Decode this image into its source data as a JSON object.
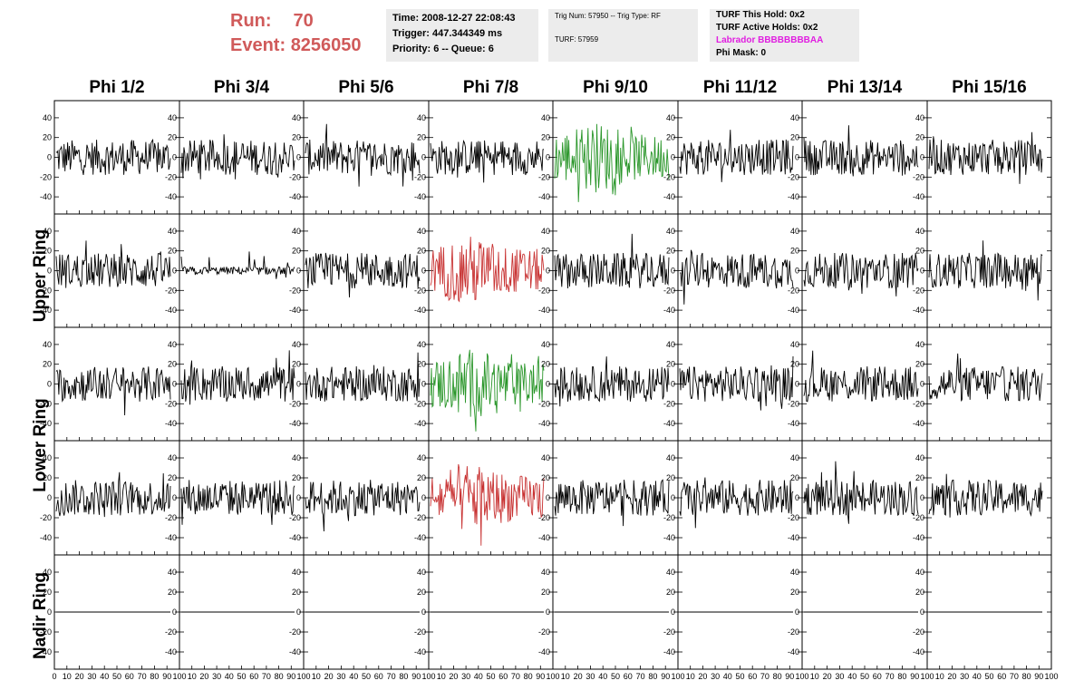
{
  "header": {
    "run_label": "Run:",
    "run_value": "70",
    "event_label": "Event:",
    "event_value": "8256050"
  },
  "info_time": {
    "time": "Time: 2008-12-27 22:08:43",
    "trigger": "Trigger: 447.344349 ms",
    "priority": "Priority: 6 -- Queue: 6"
  },
  "info_trig": {
    "trig": "Trig Num: 57950 -- Trig Type: RF",
    "turf": "TURF: 57959"
  },
  "info_turf": {
    "this_hold": "TURF This Hold: 0x2",
    "active_holds": "TURF Active Holds: 0x2",
    "labrador": "Labrador BBBBBBBBAA",
    "phi_mask": "Phi Mask: 0"
  },
  "columns": [
    "Phi 1/2",
    "Phi 3/4",
    "Phi 5/6",
    "Phi 7/8",
    "Phi 9/10",
    "Phi 11/12",
    "Phi 13/14",
    "Phi 15/16"
  ],
  "rows": [
    "Upper Ring",
    "Lower Ring",
    "Nadir Ring"
  ],
  "y_ticks": [
    "40",
    "20",
    "0",
    "-20",
    "-40"
  ],
  "x_ticks": [
    "0",
    "10",
    "20",
    "30",
    "40",
    "50",
    "60",
    "70",
    "80",
    "90",
    "100"
  ],
  "colors": {
    "run_text": "#d05a5a",
    "labrador_text": "#e01ee0",
    "trace_default": "#000000",
    "trace_green": "#2a962a",
    "trace_red": "#c83232",
    "info_bg": "#ececec"
  },
  "highlights": {
    "green": [
      [
        0,
        4
      ],
      [
        2,
        3
      ]
    ],
    "red": [
      [
        1,
        3
      ],
      [
        3,
        3
      ]
    ]
  }
}
